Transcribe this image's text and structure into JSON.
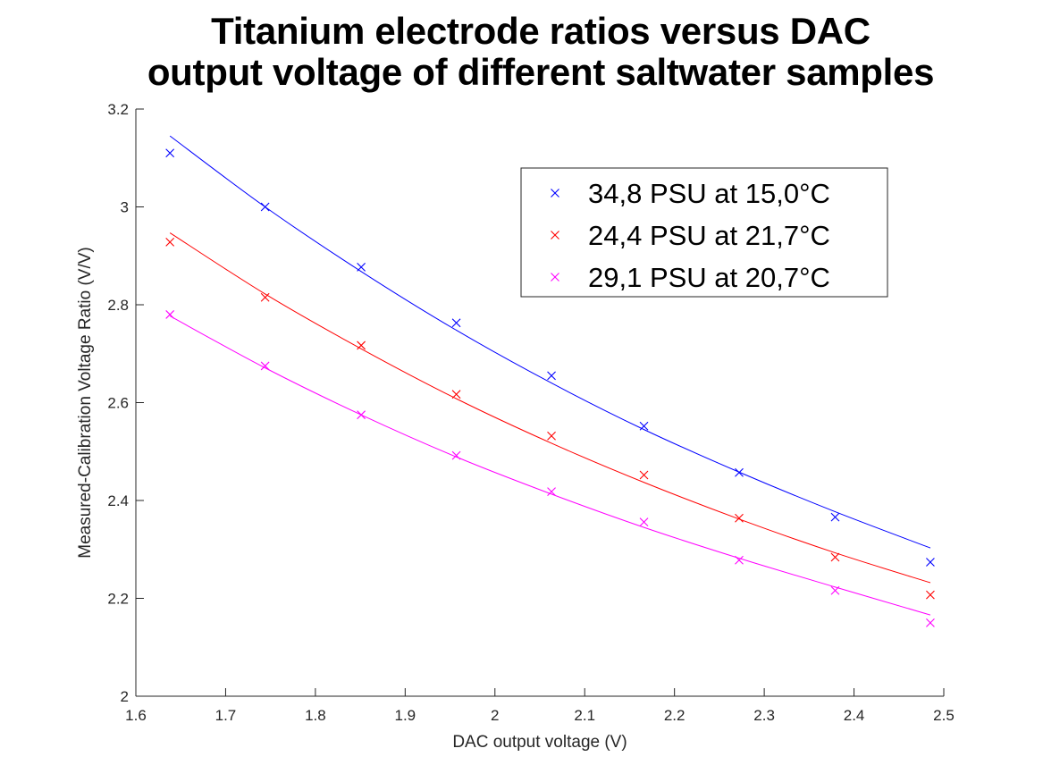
{
  "chart_data": {
    "type": "scatter",
    "title_lines": [
      "Titanium electrode ratios versus DAC",
      "output voltage of different saltwater samples"
    ],
    "xlabel": "DAC output voltage (V)",
    "ylabel": "Measured-Calibration Voltage Ratio (V/V)",
    "xlim": [
      1.6,
      2.5
    ],
    "ylim": [
      2.0,
      3.2
    ],
    "xticks": [
      1.6,
      1.7,
      1.8,
      1.9,
      2.0,
      2.1,
      2.2,
      2.3,
      2.4,
      2.5
    ],
    "xtick_labels": [
      "1.6",
      "1.7",
      "1.8",
      "1.9",
      "2",
      "2.1",
      "2.2",
      "2.3",
      "2.4",
      "2.5"
    ],
    "yticks": [
      2.0,
      2.2,
      2.4,
      2.6,
      2.8,
      3.0,
      3.2
    ],
    "ytick_labels": [
      "2",
      "2.2",
      "2.4",
      "2.6",
      "2.8",
      "3",
      "3.2"
    ],
    "grid": false,
    "legend_position": "top-right",
    "x": [
      1.638,
      1.744,
      1.851,
      1.957,
      2.063,
      2.166,
      2.272,
      2.379,
      2.485
    ],
    "series": [
      {
        "name": "34,8 PSU at 15,0°C",
        "color": "#0000ff",
        "marker": "x",
        "values": [
          3.11,
          3.0,
          2.877,
          2.763,
          2.655,
          2.552,
          2.457,
          2.366,
          2.274
        ],
        "fit": [
          3.145,
          3.0,
          2.868,
          2.748,
          2.64,
          2.545,
          2.458,
          2.377,
          2.303
        ]
      },
      {
        "name": "24,4 PSU at 21,7°C",
        "color": "#ff0000",
        "marker": "x",
        "values": [
          2.928,
          2.815,
          2.717,
          2.617,
          2.532,
          2.452,
          2.364,
          2.284,
          2.207
        ],
        "fit": [
          2.947,
          2.822,
          2.71,
          2.608,
          2.517,
          2.437,
          2.362,
          2.293,
          2.232
        ]
      },
      {
        "name": "29,1 PSU at 20,7°C",
        "color": "#ff00ff",
        "marker": "x",
        "values": [
          2.78,
          2.675,
          2.575,
          2.492,
          2.418,
          2.356,
          2.278,
          2.216,
          2.15
        ],
        "fit": [
          2.777,
          2.671,
          2.575,
          2.489,
          2.413,
          2.345,
          2.282,
          2.223,
          2.166
        ]
      }
    ]
  }
}
